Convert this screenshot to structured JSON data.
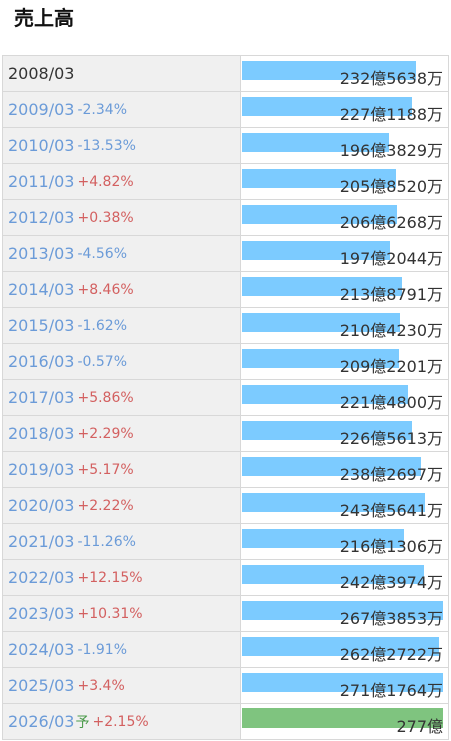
{
  "title": "売上高",
  "colors": {
    "bar": "#7ccbff",
    "forecast_bar": "#7fc47f",
    "increase": "#d36060",
    "decrease": "#6b9bd8"
  },
  "rows": [
    {
      "year": "2008/03",
      "change": "",
      "direction": "base",
      "amount": "232億5638万",
      "level": 0.8681
    },
    {
      "year": "2009/03",
      "change": "-2.34%",
      "direction": "down",
      "amount": "227億1188万",
      "level": 0.8478
    },
    {
      "year": "2010/03",
      "change": "-13.53%",
      "direction": "down",
      "amount": "196億3829万",
      "level": 0.7331
    },
    {
      "year": "2011/03",
      "change": "+4.82%",
      "direction": "up",
      "amount": "205億8520万",
      "level": 0.7684
    },
    {
      "year": "2012/03",
      "change": "+0.38%",
      "direction": "up",
      "amount": "206億6268万",
      "level": 0.7713
    },
    {
      "year": "2013/03",
      "change": "-4.56%",
      "direction": "down",
      "amount": "197億2044万",
      "level": 0.7361
    },
    {
      "year": "2014/03",
      "change": "+8.46%",
      "direction": "up",
      "amount": "213億8791万",
      "level": 0.7984
    },
    {
      "year": "2015/03",
      "change": "-1.62%",
      "direction": "down",
      "amount": "210億4230万",
      "level": 0.7854
    },
    {
      "year": "2016/03",
      "change": "-0.57%",
      "direction": "down",
      "amount": "209億2201万",
      "level": 0.781
    },
    {
      "year": "2017/03",
      "change": "+5.86%",
      "direction": "up",
      "amount": "221億4800万",
      "level": 0.8267
    },
    {
      "year": "2018/03",
      "change": "+2.29%",
      "direction": "up",
      "amount": "226億5613万",
      "level": 0.8457
    },
    {
      "year": "2019/03",
      "change": "+5.17%",
      "direction": "up",
      "amount": "238億2697万",
      "level": 0.8894
    },
    {
      "year": "2020/03",
      "change": "+2.22%",
      "direction": "up",
      "amount": "243億5641万",
      "level": 0.9092
    },
    {
      "year": "2021/03",
      "change": "-11.26%",
      "direction": "down",
      "amount": "216億1306万",
      "level": 0.8068
    },
    {
      "year": "2022/03",
      "change": "+12.15%",
      "direction": "up",
      "amount": "242億3974万",
      "level": 0.9048
    },
    {
      "year": "2023/03",
      "change": "+10.31%",
      "direction": "up",
      "amount": "267億3853万",
      "level": 0.9981
    },
    {
      "year": "2024/03",
      "change": "-1.91%",
      "direction": "down",
      "amount": "262億2722万",
      "level": 0.979
    },
    {
      "year": "2025/03",
      "change": "+3.4%",
      "direction": "up",
      "amount": "271億1764万",
      "level": 1.0
    },
    {
      "year": "2026/03",
      "forecast_mark": "予",
      "change": "+2.15%",
      "direction": "up",
      "amount": "277億",
      "level": 1.0,
      "forecast": true
    }
  ]
}
